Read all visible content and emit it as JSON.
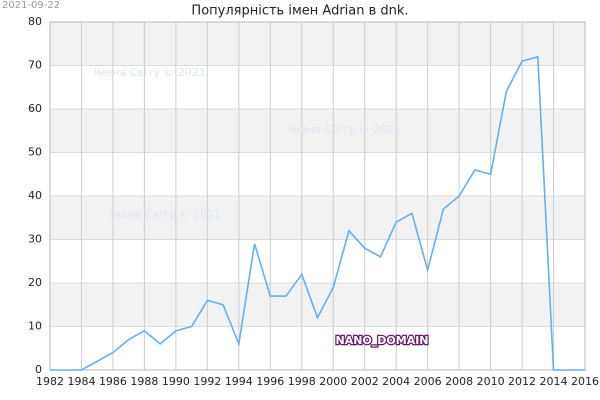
{
  "chart_data": {
    "type": "line",
    "title": "Популярність імен Adrian в dnk.",
    "date_stamp": "2021-09-22",
    "annotations": [
      "Імена Світу © 2021",
      "Імена Світу © 2021",
      "Імена Світу © 2021",
      "NANO_DOMAIN"
    ],
    "x": [
      1982,
      1983,
      1984,
      1985,
      1986,
      1987,
      1988,
      1989,
      1990,
      1991,
      1992,
      1993,
      1994,
      1995,
      1996,
      1997,
      1998,
      1999,
      2000,
      2001,
      2002,
      2003,
      2004,
      2005,
      2006,
      2007,
      2008,
      2009,
      2010,
      2011,
      2012,
      2013,
      2014,
      2015,
      2016
    ],
    "series": [
      {
        "name": "Adrian",
        "color": "#6aaee8",
        "values": [
          0,
          0,
          0,
          2,
          4,
          7,
          9,
          6,
          9,
          10,
          16,
          15,
          6,
          29,
          17,
          17,
          22,
          12,
          19,
          32,
          28,
          26,
          34,
          36,
          23,
          37,
          40,
          46,
          45,
          64,
          71,
          72,
          0,
          0,
          0
        ]
      }
    ],
    "xlim": [
      1982,
      2016
    ],
    "xticks": [
      1982,
      1984,
      1986,
      1988,
      1990,
      1992,
      1994,
      1996,
      1998,
      2000,
      2002,
      2004,
      2006,
      2008,
      2010,
      2012,
      2014,
      2016
    ],
    "ylim": [
      0,
      80
    ],
    "yticks": [
      0,
      10,
      20,
      30,
      40,
      50,
      60,
      70,
      80
    ],
    "grid": true,
    "bands": true
  }
}
